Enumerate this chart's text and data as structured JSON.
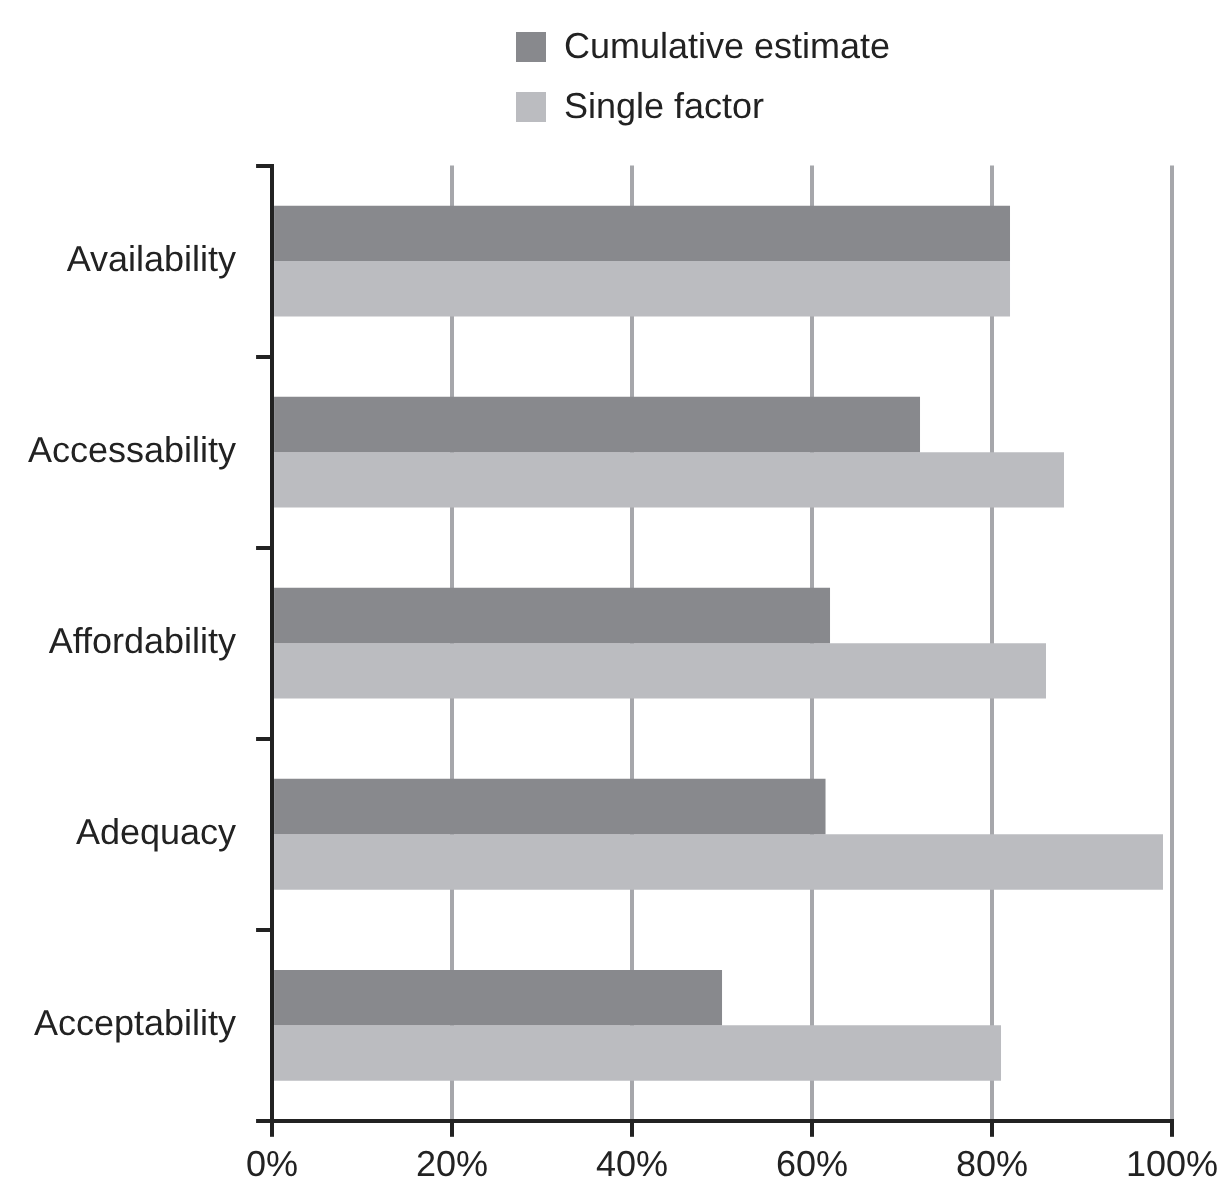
{
  "chart_data": {
    "type": "bar",
    "orientation": "horizontal",
    "categories": [
      "Availability",
      "Accessability",
      "Affordability",
      "Adequacy",
      "Acceptability"
    ],
    "series": [
      {
        "name": "Cumulative estimate",
        "color": "#88898d",
        "values": [
          82,
          72,
          62,
          61.5,
          50
        ]
      },
      {
        "name": "Single factor",
        "color": "#bbbcc0",
        "values": [
          82,
          88,
          86,
          99,
          81
        ]
      }
    ],
    "xlim": [
      0,
      100
    ],
    "xticks": [
      {
        "value": 0,
        "label": "0%"
      },
      {
        "value": 20,
        "label": "20%"
      },
      {
        "value": 40,
        "label": "40%"
      },
      {
        "value": 60,
        "label": "60%"
      },
      {
        "value": 80,
        "label": "80%"
      },
      {
        "value": 100,
        "label": "100%"
      }
    ],
    "grid": "x",
    "legend": "top"
  }
}
